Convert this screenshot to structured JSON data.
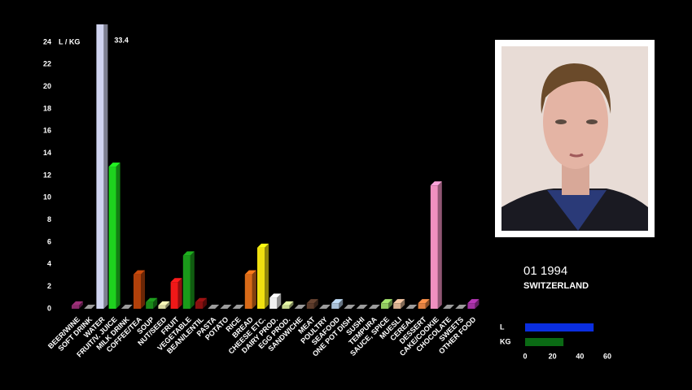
{
  "chart_data": [
    {
      "type": "bar3d",
      "y_label": "L / KG",
      "categories": [
        "BEER/WINE",
        "SOFT DRINK",
        "WATER",
        "FRUIT/V. JUICE",
        "MILK DRINK",
        "COFFEE/TEA",
        "SOUP",
        "NUT/SEED",
        "FRUIT",
        "VEGETABLE",
        "BEAN/LENTIL",
        "PASTA",
        "POTATO",
        "RICE",
        "BREAD",
        "CHEESE ETC.",
        "DAIRY PROD.",
        "EGG PROD.",
        "SANDWICHE",
        "MEAT",
        "POULTRY",
        "SEAFOOD",
        "ONE POT DISH",
        "SUSHI",
        "TEMPURA",
        "SAUCE, SPICE",
        "MUESLI",
        "CEREAL",
        "DESSERT",
        "CAKE/COOKIE",
        "CHOCOLATE",
        "SWEETS",
        "OTHER FOOD"
      ],
      "values": [
        0.3,
        0,
        33.4,
        12.8,
        0,
        3.1,
        0.6,
        0.3,
        2.4,
        4.8,
        0.6,
        0,
        0,
        0,
        3.1,
        5.5,
        1.0,
        0.3,
        0,
        0.5,
        0,
        0.5,
        0,
        0,
        0,
        0.5,
        0.5,
        0,
        0.5,
        11.1,
        0,
        0,
        0.5
      ],
      "value_labels": [
        null,
        null,
        "33.4",
        null,
        null,
        null,
        null,
        null,
        null,
        null,
        null,
        null,
        null,
        null,
        null,
        null,
        null,
        null,
        null,
        null,
        null,
        null,
        null,
        null,
        null,
        null,
        null,
        null,
        null,
        null,
        null,
        null,
        null
      ],
      "colors": [
        "#8a2a6a",
        "#888888",
        "#d0d4f0",
        "#1ed21e",
        "#888888",
        "#b0400a",
        "#1a8a1a",
        "#d8d8a0",
        "#f01818",
        "#1a9a1a",
        "#8a1010",
        "#888888",
        "#888888",
        "#888888",
        "#d86a18",
        "#f0e010",
        "#f0f0f0",
        "#c8d890",
        "#888888",
        "#5a3a2a",
        "#888888",
        "#a8c0d8",
        "#888888",
        "#888888",
        "#888888",
        "#90c860",
        "#d8b090",
        "#888888",
        "#e08040",
        "#f090c0",
        "#888888",
        "#888888",
        "#a030a0"
      ],
      "ylim": [
        0,
        24
      ],
      "yticks": [
        0,
        2,
        4,
        6,
        8,
        10,
        12,
        14,
        16,
        18,
        20,
        22,
        24
      ]
    },
    {
      "type": "hbar",
      "categories": [
        "L",
        "KG"
      ],
      "values": [
        50,
        28
      ],
      "colors": [
        "#0a2ee0",
        "#0a6a14"
      ],
      "xlim": [
        0,
        60
      ],
      "xticks": [
        0,
        20,
        40,
        60
      ]
    }
  ],
  "caption": {
    "date": "01 1994",
    "country": "SWITZERLAND"
  }
}
